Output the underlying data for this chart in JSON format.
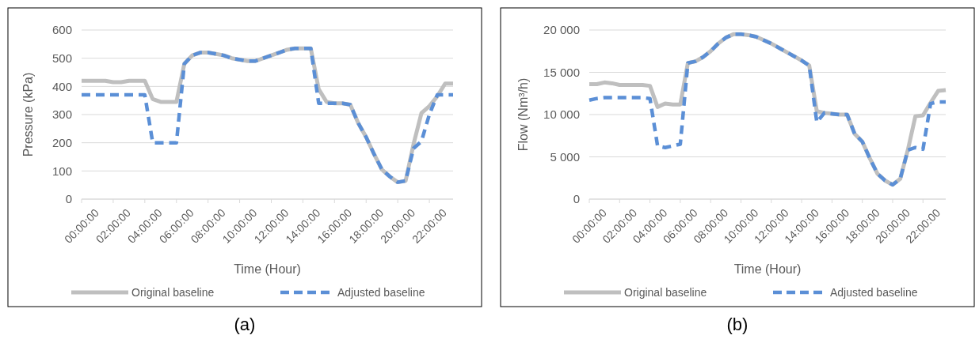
{
  "chart_data": [
    {
      "type": "line",
      "ylabel": "Pressure (kPa)",
      "xlabel": "Time (Hour)",
      "annotations": [
        "(a)"
      ],
      "grid": "y",
      "legend": "bottom",
      "categories": [
        "00:00:00",
        null,
        null,
        null,
        "02:00:00",
        null,
        null,
        null,
        "04:00:00",
        null,
        null,
        null,
        "06:00:00",
        null,
        null,
        null,
        "08:00:00",
        null,
        null,
        null,
        "10:00:00",
        null,
        null,
        null,
        "12:00:00",
        null,
        null,
        null,
        "14:00:00",
        null,
        null,
        null,
        "16:00:00",
        null,
        null,
        null,
        "18:00:00",
        null,
        null,
        null,
        "20:00:00",
        null,
        null,
        null,
        "22:00:00",
        null,
        null,
        null
      ],
      "ylim": [
        0,
        600
      ],
      "yticks": [
        0,
        100,
        200,
        300,
        400,
        500,
        600
      ],
      "series": [
        {
          "name": "Original baseline",
          "color": "#bfbfbf",
          "line_style": "solid",
          "values": [
            420,
            420,
            420,
            420,
            415,
            415,
            420,
            420,
            420,
            355,
            345,
            345,
            345,
            480,
            510,
            520,
            520,
            515,
            510,
            500,
            495,
            490,
            490,
            500,
            510,
            520,
            530,
            535,
            535,
            535,
            390,
            345,
            340,
            340,
            335,
            270,
            220,
            160,
            105,
            80,
            60,
            65,
            195,
            305,
            330,
            365,
            410,
            410
          ]
        },
        {
          "name": "Adjusted baseline",
          "color": "#5b8fd6",
          "line_style": "dashed",
          "values": [
            370,
            370,
            370,
            370,
            370,
            370,
            370,
            370,
            370,
            200,
            200,
            200,
            200,
            480,
            510,
            520,
            520,
            515,
            510,
            500,
            495,
            490,
            490,
            500,
            510,
            520,
            530,
            535,
            535,
            535,
            340,
            340,
            340,
            340,
            335,
            270,
            220,
            160,
            105,
            80,
            60,
            65,
            180,
            205,
            300,
            370,
            370,
            370
          ]
        }
      ]
    },
    {
      "type": "line",
      "ylabel": "Flow (Nm³/h)",
      "xlabel": "Time (Hour)",
      "annotations": [
        "(b)"
      ],
      "grid": "y",
      "legend": "bottom",
      "categories": [
        "00:00:00",
        null,
        null,
        null,
        "02:00:00",
        null,
        null,
        null,
        "04:00:00",
        null,
        null,
        null,
        "06:00:00",
        null,
        null,
        null,
        "08:00:00",
        null,
        null,
        null,
        "10:00:00",
        null,
        null,
        null,
        "12:00:00",
        null,
        null,
        null,
        "14:00:00",
        null,
        null,
        null,
        "16:00:00",
        null,
        null,
        null,
        "18:00:00",
        null,
        null,
        null,
        "20:00:00",
        null,
        null,
        null,
        "22:00:00",
        null,
        null,
        null
      ],
      "ylim": [
        0,
        20000
      ],
      "yticks": [
        0,
        {
          "value": 5000,
          "label": "5 000"
        },
        {
          "value": 10000,
          "label": "10 000"
        },
        {
          "value": 15000,
          "label": "15 000"
        },
        {
          "value": 20000,
          "label": "20 000"
        }
      ],
      "series": [
        {
          "name": "Original baseline",
          "color": "#bfbfbf",
          "line_style": "solid",
          "values": [
            13600,
            13600,
            13800,
            13700,
            13500,
            13500,
            13500,
            13500,
            13400,
            10900,
            11300,
            11200,
            11200,
            16100,
            16300,
            16800,
            17500,
            18400,
            19100,
            19500,
            19500,
            19400,
            19200,
            18800,
            18400,
            17900,
            17400,
            16900,
            16400,
            15800,
            10400,
            10200,
            10100,
            10000,
            10000,
            7700,
            6800,
            4800,
            3000,
            2200,
            1700,
            2400,
            5800,
            9800,
            9900,
            11400,
            12800,
            12900
          ]
        },
        {
          "name": "Adjusted baseline",
          "color": "#5b8fd6",
          "line_style": "dashed",
          "values": [
            11700,
            11900,
            12000,
            12000,
            12000,
            12000,
            12000,
            12000,
            11900,
            6300,
            6100,
            6300,
            6500,
            16100,
            16300,
            16800,
            17500,
            18400,
            19100,
            19500,
            19500,
            19400,
            19200,
            18800,
            18400,
            17900,
            17400,
            16900,
            16400,
            15800,
            9100,
            10200,
            10100,
            10000,
            10000,
            7700,
            6800,
            4800,
            3000,
            2200,
            1700,
            2400,
            5800,
            6100,
            5900,
            11300,
            11500,
            11500
          ]
        }
      ]
    }
  ]
}
